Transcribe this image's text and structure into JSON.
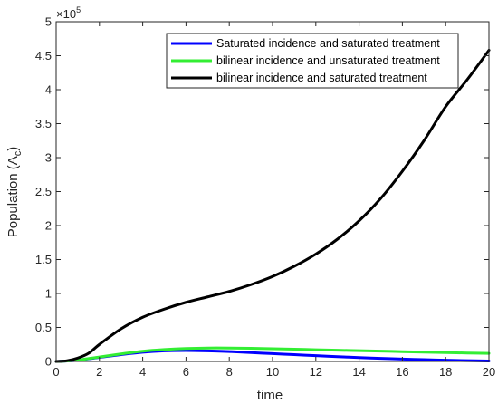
{
  "chart_data": {
    "type": "line",
    "title": "",
    "xlabel": "time",
    "ylabel": "Population (A",
    "ylabel_subscript": "c",
    "ylabel_close": ")",
    "y_multiplier": "×10",
    "y_multiplier_exponent": "5",
    "xlim": [
      0,
      20
    ],
    "ylim": [
      0,
      5
    ],
    "x_ticks": [
      0,
      2,
      4,
      6,
      8,
      10,
      12,
      14,
      16,
      18,
      20
    ],
    "y_ticks": [
      0,
      0.5,
      1,
      1.5,
      2,
      2.5,
      3,
      3.5,
      4,
      4.5,
      5
    ],
    "x_tick_labels": [
      "0",
      "2",
      "4",
      "6",
      "8",
      "10",
      "12",
      "14",
      "16",
      "18",
      "20"
    ],
    "y_tick_labels": [
      "0",
      "0.5",
      "1",
      "1.5",
      "2",
      "2.5",
      "3",
      "3.5",
      "4",
      "4.5",
      "5"
    ],
    "grid": false,
    "legend_position": "top-right",
    "series": [
      {
        "name": "Saturated incidence and saturated treatment",
        "color": "#0000ff",
        "x": [
          0,
          0.5,
          1,
          2,
          3,
          4,
          5,
          6,
          7,
          8,
          9,
          10,
          11,
          12,
          13,
          14,
          15,
          16,
          17,
          18,
          19,
          20
        ],
        "y": [
          0,
          0.006,
          0.018,
          0.06,
          0.1,
          0.135,
          0.155,
          0.16,
          0.155,
          0.145,
          0.13,
          0.115,
          0.1,
          0.085,
          0.07,
          0.057,
          0.045,
          0.035,
          0.026,
          0.018,
          0.012,
          0.007
        ]
      },
      {
        "name": "bilinear incidence and unsaturated treatment",
        "color": "#33ee33",
        "x": [
          0,
          0.5,
          1,
          2,
          3,
          4,
          5,
          6,
          7,
          8,
          9,
          10,
          11,
          12,
          13,
          14,
          15,
          16,
          17,
          18,
          19,
          20
        ],
        "y": [
          0,
          0.006,
          0.02,
          0.065,
          0.11,
          0.15,
          0.175,
          0.19,
          0.197,
          0.197,
          0.193,
          0.187,
          0.18,
          0.172,
          0.165,
          0.158,
          0.151,
          0.144,
          0.137,
          0.13,
          0.124,
          0.118
        ]
      },
      {
        "name": "bilinear incidence and saturated treatment",
        "color": "#000000",
        "x": [
          0,
          0.5,
          1,
          1.5,
          2,
          3,
          4,
          5,
          6,
          7,
          8,
          9,
          10,
          11,
          12,
          13,
          14,
          15,
          16,
          17,
          18,
          19,
          20
        ],
        "y": [
          0,
          0.01,
          0.05,
          0.12,
          0.25,
          0.48,
          0.65,
          0.77,
          0.87,
          0.95,
          1.03,
          1.13,
          1.25,
          1.4,
          1.58,
          1.8,
          2.07,
          2.4,
          2.8,
          3.25,
          3.75,
          4.15,
          4.58
        ]
      }
    ]
  }
}
